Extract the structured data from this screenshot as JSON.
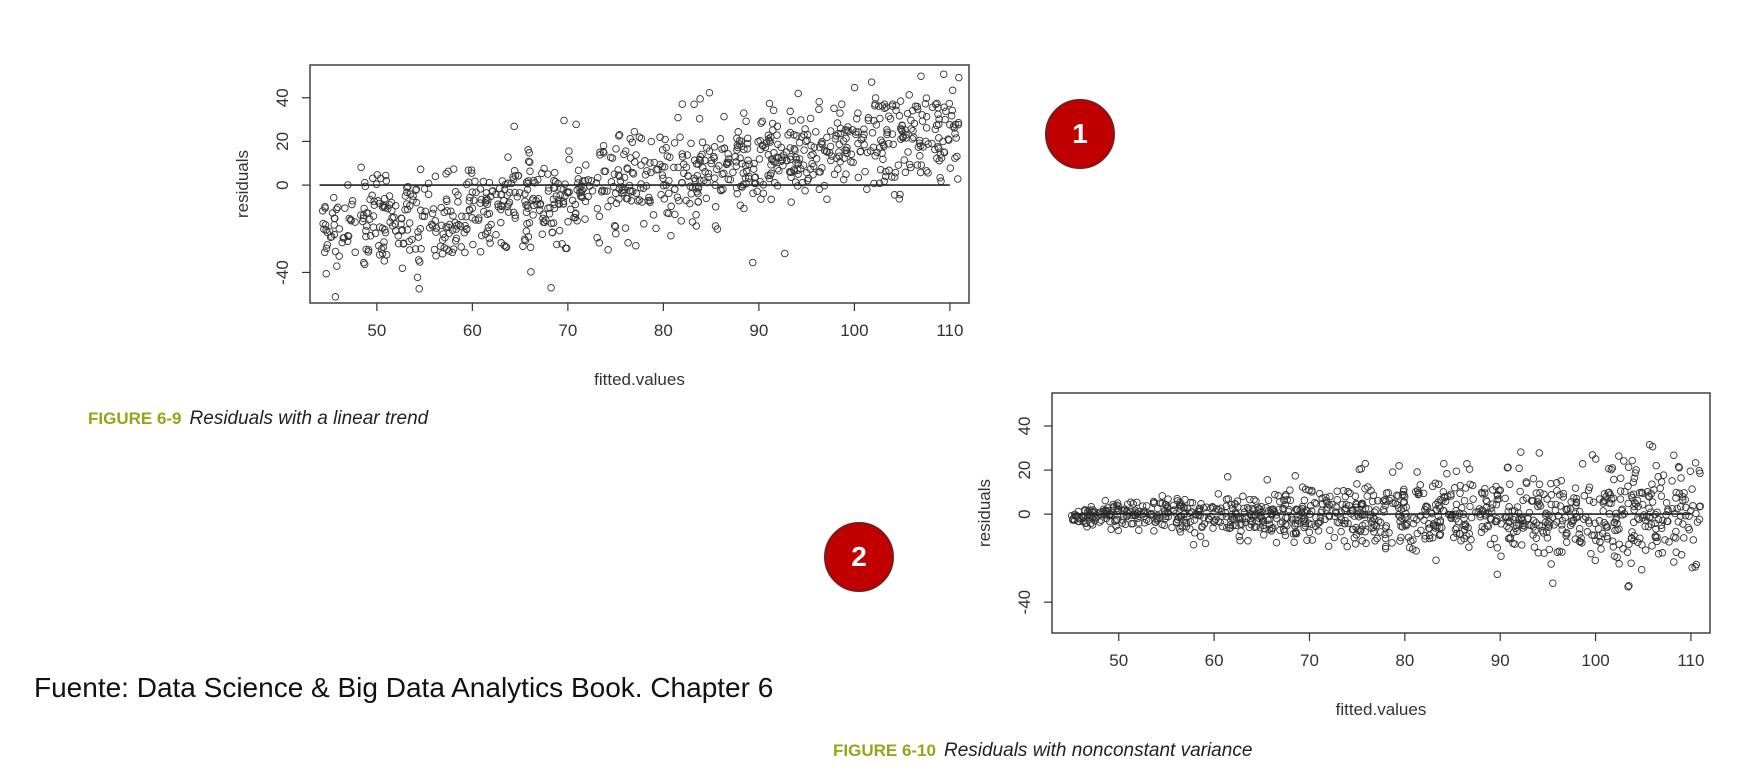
{
  "chart_data": [
    {
      "type": "scatter",
      "xlabel": "fitted.values",
      "ylabel": "residuals",
      "xlim": [
        43,
        112
      ],
      "ylim": [
        -54,
        55
      ],
      "xticks": [
        50,
        60,
        70,
        80,
        90,
        100,
        110
      ],
      "yticks": [
        -40,
        0,
        20,
        40
      ],
      "reference_line": {
        "y": 0,
        "x_from": 44,
        "x_to": 110
      },
      "trend": {
        "slope": 0.72,
        "intercept_at_x": 44,
        "intercept_value": -22
      },
      "noise_sd": 11,
      "n_points": 1000,
      "marker": "open-circle",
      "x_range": [
        44,
        111
      ],
      "caption_label": "FIGURE 6-9",
      "caption_text": "Residuals with a linear trend"
    },
    {
      "type": "scatter",
      "xlabel": "fitted.values",
      "ylabel": "residuals",
      "xlim": [
        43,
        112
      ],
      "ylim": [
        -54,
        55
      ],
      "xticks": [
        50,
        60,
        70,
        80,
        90,
        100,
        110
      ],
      "yticks": [
        -40,
        0,
        20,
        40
      ],
      "reference_line": {
        "y": 0,
        "x_from": 45,
        "x_to": 110
      },
      "noise_sd_at_min_x": 2,
      "noise_sd_at_max_x": 14,
      "n_points": 1100,
      "marker": "open-circle",
      "x_range": [
        45,
        111
      ],
      "caption_label": "FIGURE 6-10",
      "caption_text": "Residuals with nonconstant variance"
    }
  ],
  "badges": [
    "1",
    "2"
  ],
  "source_text": "Fuente: Data Science & Big Data Analytics Book. Chapter 6",
  "colors": {
    "badge": "#c00000",
    "figure_label": "#8fa81a",
    "marker": "#333333"
  }
}
